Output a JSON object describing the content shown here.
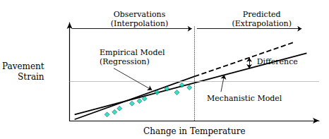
{
  "chart_data": {
    "type": "line",
    "xlabel": "Change in Temperature",
    "ylabel": "Pavement\nStrain",
    "xlim": [
      0,
      10
    ],
    "ylim": [
      0,
      8
    ],
    "grid": false,
    "tick_labels": false,
    "series": [
      {
        "type": "line",
        "color": "#000000",
        "line_style": "solid",
        "x": [
          0.2,
          5.0
        ],
        "values": [
          0.1,
          3.6
        ]
      },
      {
        "type": "line",
        "color": "#000000",
        "line_style": "dashed",
        "x": [
          5.0,
          9.0
        ],
        "values": [
          3.6,
          6.4
        ]
      },
      {
        "type": "line",
        "color": "#000000",
        "line_style": "solid",
        "x": [
          0.2,
          9.5
        ],
        "values": [
          0.5,
          5.5
        ]
      },
      {
        "type": "scatter",
        "color": "#00ddc0",
        "marker": "diamond",
        "x": [
          1.5,
          1.8,
          2.0,
          2.5,
          2.8,
          3.0,
          3.5,
          3.9,
          4.3,
          4.5,
          4.8
        ],
        "values": [
          0.5,
          0.7,
          1.0,
          1.4,
          1.6,
          1.8,
          2.3,
          2.6,
          2.3,
          2.9,
          2.7
        ]
      }
    ],
    "hlines": [
      3.2
    ],
    "vlines": [
      {
        "x": 5.0,
        "ylim": [
          0,
          7.7
        ]
      }
    ],
    "regions": [
      {
        "text": "Observations\n(Interpolation)",
        "x": 2.8,
        "y": 7.55,
        "arrow": {
          "from": [
            0.1,
            7.5
          ],
          "to": [
            4.9,
            7.5
          ]
        }
      },
      {
        "text": "Predicted\n(Extrapolation)",
        "x": 7.7,
        "y": 7.55,
        "arrow": {
          "from": [
            5.1,
            7.5
          ],
          "to": [
            9.3,
            7.5
          ]
        }
      }
    ],
    "annotations": [
      {
        "text": "Empirical Model\n(Regression)",
        "x": 1.2,
        "y": 5.2,
        "arrow_to": [
          3.3,
          2.5
        ]
      },
      {
        "text": "Mechanistic Model",
        "x": 5.5,
        "y": 1.8,
        "arrow_to": [
          6.2,
          3.725806
        ]
      }
    ],
    "difference": {
      "text": "Difference",
      "x": 7.5,
      "y": 4.80172,
      "arrow": {
        "from": [
          7.2,
          5.14
        ],
        "to": [
          7.2,
          4.263441
        ]
      }
    }
  }
}
